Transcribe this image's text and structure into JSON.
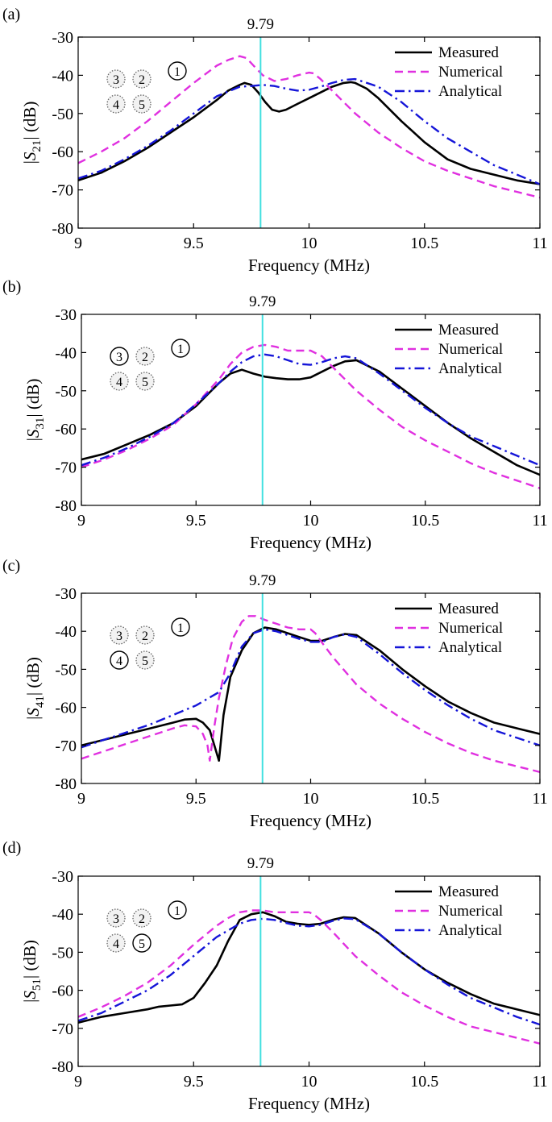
{
  "figure": {
    "x_range": [
      9,
      11
    ],
    "y_range": [
      -80,
      -30
    ],
    "x_ticks": [
      "9",
      "9.5",
      "10",
      "10.5",
      "11"
    ],
    "y_ticks": [
      "-30",
      "-40",
      "-50",
      "-60",
      "-70",
      "-80"
    ],
    "marker_value": 9.79,
    "marker_label": "9.79",
    "colors": {
      "measured": "#000000",
      "numerical": "#e030e0",
      "analytical": "#1515d8",
      "marker": "#40e0e0"
    }
  },
  "chart_data": [
    {
      "type": "line",
      "panel_label": "(a)",
      "ylabel": {
        "prefix": "|",
        "var": "S",
        "sub": "21",
        "suffix": "| (dB)"
      },
      "xlabel": "Frequency (MHz)",
      "xlim": [
        9,
        11
      ],
      "ylim": [
        -80,
        -30
      ],
      "vline": {
        "x": 9.79,
        "label": "9.79"
      },
      "legend": {
        "position": "top-right",
        "entries": [
          "Measured",
          "Numerical",
          "Analytical"
        ]
      },
      "ports": {
        "row1": [
          "3",
          "2"
        ],
        "row2": [
          "4",
          "5"
        ],
        "source": "1",
        "active": [
          "1"
        ]
      },
      "series": [
        {
          "name": "Measured",
          "style": "solid",
          "x": [
            9.0,
            9.1,
            9.2,
            9.3,
            9.4,
            9.5,
            9.6,
            9.65,
            9.7,
            9.72,
            9.75,
            9.78,
            9.81,
            9.84,
            9.87,
            9.9,
            9.95,
            10.0,
            10.05,
            10.1,
            10.15,
            10.18,
            10.2,
            10.25,
            10.3,
            10.4,
            10.5,
            10.6,
            10.7,
            10.8,
            10.9,
            11.0
          ],
          "y": [
            -67.5,
            -65.5,
            -62.5,
            -59,
            -55,
            -51,
            -46.5,
            -44,
            -42.5,
            -42,
            -42.5,
            -44.5,
            -47,
            -49,
            -49.5,
            -49,
            -47.5,
            -46,
            -44.5,
            -43,
            -42,
            -41.8,
            -42,
            -43.5,
            -46,
            -52,
            -57.5,
            -62,
            -64.5,
            -66,
            -67.5,
            -68.5
          ]
        },
        {
          "name": "Numerical",
          "style": "dashed",
          "x": [
            9.0,
            9.1,
            9.2,
            9.3,
            9.4,
            9.5,
            9.6,
            9.65,
            9.7,
            9.73,
            9.76,
            9.8,
            9.85,
            9.9,
            9.95,
            10.0,
            10.02,
            10.05,
            10.1,
            10.2,
            10.3,
            10.4,
            10.5,
            10.6,
            10.7,
            10.8,
            10.9,
            11.0
          ],
          "y": [
            -63,
            -60,
            -56.5,
            -52,
            -47,
            -42,
            -37.5,
            -36,
            -35,
            -35.5,
            -37.5,
            -40,
            -41.5,
            -41,
            -40,
            -39.3,
            -39.5,
            -41,
            -44,
            -50,
            -55,
            -59,
            -62.5,
            -65,
            -67,
            -69,
            -70.5,
            -72
          ]
        },
        {
          "name": "Analytical",
          "style": "dashdot",
          "x": [
            9.0,
            9.1,
            9.2,
            9.3,
            9.4,
            9.5,
            9.6,
            9.7,
            9.75,
            9.8,
            9.85,
            9.9,
            9.95,
            10.0,
            10.05,
            10.1,
            10.15,
            10.2,
            10.3,
            10.4,
            10.5,
            10.6,
            10.7,
            10.8,
            10.9,
            11.0
          ],
          "y": [
            -67,
            -65,
            -62,
            -58.5,
            -54.5,
            -50,
            -45.5,
            -43,
            -42.8,
            -42.5,
            -42.8,
            -43.5,
            -44,
            -43.8,
            -43,
            -42,
            -41.2,
            -41,
            -43,
            -47,
            -52,
            -56.5,
            -60,
            -63.5,
            -66,
            -68.5
          ]
        }
      ]
    },
    {
      "type": "line",
      "panel_label": "(b)",
      "ylabel": {
        "prefix": "|",
        "var": "S",
        "sub": "31",
        "suffix": "| (dB)"
      },
      "xlabel": "Frequency (MHz)",
      "xlim": [
        9,
        11
      ],
      "ylim": [
        -80,
        -30
      ],
      "vline": {
        "x": 9.79,
        "label": "9.79"
      },
      "legend": {
        "position": "top-right",
        "entries": [
          "Measured",
          "Numerical",
          "Analytical"
        ]
      },
      "ports": {
        "row1": [
          "3",
          "2"
        ],
        "row2": [
          "4",
          "5"
        ],
        "source": "1",
        "active": [
          "1",
          "3"
        ]
      },
      "series": [
        {
          "name": "Measured",
          "style": "solid",
          "x": [
            9.0,
            9.1,
            9.2,
            9.3,
            9.4,
            9.5,
            9.55,
            9.6,
            9.65,
            9.7,
            9.75,
            9.8,
            9.85,
            9.9,
            9.95,
            10.0,
            10.05,
            10.1,
            10.15,
            10.2,
            10.3,
            10.4,
            10.5,
            10.6,
            10.7,
            10.8,
            10.9,
            11.0
          ],
          "y": [
            -68,
            -66.5,
            -64,
            -61.5,
            -58.5,
            -54,
            -51,
            -48,
            -45.5,
            -44.5,
            -45.5,
            -46.3,
            -46.7,
            -47,
            -47,
            -46.5,
            -45,
            -43.5,
            -42.3,
            -42,
            -45,
            -49.5,
            -54,
            -58.5,
            -62.5,
            -66,
            -69.5,
            -72
          ]
        },
        {
          "name": "Numerical",
          "style": "dashed",
          "x": [
            9.0,
            9.1,
            9.2,
            9.3,
            9.4,
            9.5,
            9.6,
            9.65,
            9.7,
            9.75,
            9.8,
            9.85,
            9.9,
            9.95,
            10.0,
            10.05,
            10.1,
            10.2,
            10.3,
            10.4,
            10.5,
            10.6,
            10.7,
            10.8,
            10.9,
            11.0
          ],
          "y": [
            -70,
            -68,
            -65.5,
            -62.5,
            -59,
            -53.5,
            -47,
            -43,
            -40,
            -38.5,
            -38,
            -38.5,
            -39.5,
            -39.5,
            -39.5,
            -41,
            -44,
            -50,
            -55,
            -59.5,
            -63,
            -66,
            -69,
            -71.5,
            -73.5,
            -75.5
          ]
        },
        {
          "name": "Analytical",
          "style": "dashdot",
          "x": [
            9.0,
            9.1,
            9.2,
            9.3,
            9.4,
            9.5,
            9.6,
            9.65,
            9.7,
            9.75,
            9.8,
            9.85,
            9.9,
            9.95,
            10.0,
            10.05,
            10.1,
            10.15,
            10.2,
            10.3,
            10.4,
            10.5,
            10.6,
            10.7,
            10.8,
            10.9,
            11.0
          ],
          "y": [
            -69.5,
            -67.5,
            -65,
            -62,
            -58.5,
            -53.5,
            -48,
            -45,
            -42.5,
            -41,
            -40.5,
            -41,
            -42,
            -43,
            -43.2,
            -42.5,
            -41.5,
            -41,
            -41.5,
            -45.5,
            -50,
            -54.5,
            -58.5,
            -62,
            -64.5,
            -67,
            -69.5
          ]
        }
      ]
    },
    {
      "type": "line",
      "panel_label": "(c)",
      "ylabel": {
        "prefix": "|",
        "var": "S",
        "sub": "41",
        "suffix": "| (dB)"
      },
      "xlabel": "Frequency (MHz)",
      "xlim": [
        9,
        11
      ],
      "ylim": [
        -80,
        -30
      ],
      "vline": {
        "x": 9.79,
        "label": "9.79"
      },
      "legend": {
        "position": "top-right",
        "entries": [
          "Measured",
          "Numerical",
          "Analytical"
        ]
      },
      "ports": {
        "row1": [
          "3",
          "2"
        ],
        "row2": [
          "4",
          "5"
        ],
        "source": "1",
        "active": [
          "1",
          "4"
        ]
      },
      "series": [
        {
          "name": "Measured",
          "style": "solid",
          "x": [
            9.0,
            9.1,
            9.2,
            9.3,
            9.4,
            9.45,
            9.5,
            9.53,
            9.56,
            9.58,
            9.6,
            9.62,
            9.65,
            9.7,
            9.75,
            9.8,
            9.85,
            9.9,
            9.95,
            10.0,
            10.05,
            10.1,
            10.15,
            10.2,
            10.3,
            10.4,
            10.5,
            10.6,
            10.7,
            10.8,
            10.9,
            11.0
          ],
          "y": [
            -70,
            -68.5,
            -67,
            -65.5,
            -64,
            -63.2,
            -63,
            -64,
            -66,
            -70,
            -74,
            -62,
            -52,
            -45,
            -40.5,
            -39,
            -39.5,
            -40.5,
            -41.5,
            -42.5,
            -42.5,
            -41.5,
            -40.7,
            -41,
            -45,
            -50,
            -54.5,
            -58.5,
            -61.5,
            -64,
            -65.5,
            -67
          ]
        },
        {
          "name": "Numerical",
          "style": "dashed",
          "x": [
            9.0,
            9.1,
            9.2,
            9.3,
            9.4,
            9.45,
            9.5,
            9.53,
            9.55,
            9.56,
            9.58,
            9.6,
            9.63,
            9.66,
            9.7,
            9.73,
            9.76,
            9.8,
            9.85,
            9.9,
            9.95,
            10.0,
            10.02,
            10.05,
            10.1,
            10.2,
            10.3,
            10.4,
            10.5,
            10.6,
            10.7,
            10.8,
            10.9,
            11.0
          ],
          "y": [
            -73.5,
            -71.5,
            -69.5,
            -67.5,
            -65.5,
            -64.7,
            -65,
            -67,
            -70,
            -74,
            -65,
            -57.5,
            -49,
            -42,
            -37.5,
            -36,
            -36,
            -37,
            -38,
            -39,
            -39.5,
            -39.5,
            -40.5,
            -43,
            -47,
            -54,
            -59,
            -63,
            -66.5,
            -69.5,
            -72,
            -74,
            -75.5,
            -77
          ]
        },
        {
          "name": "Analytical",
          "style": "dashdot",
          "x": [
            9.0,
            9.1,
            9.2,
            9.3,
            9.4,
            9.5,
            9.6,
            9.65,
            9.7,
            9.75,
            9.8,
            9.85,
            9.9,
            9.95,
            10.0,
            10.05,
            10.1,
            10.15,
            10.2,
            10.3,
            10.4,
            10.5,
            10.6,
            10.7,
            10.8,
            10.9,
            11.0
          ],
          "y": [
            -70.5,
            -68.5,
            -66.5,
            -64.5,
            -62,
            -59.5,
            -56,
            -51,
            -44,
            -40.5,
            -39.5,
            -40,
            -41,
            -42,
            -42.8,
            -42.8,
            -41.5,
            -40.8,
            -41.5,
            -46,
            -51,
            -55.5,
            -59.5,
            -63,
            -66,
            -68,
            -70
          ]
        }
      ]
    },
    {
      "type": "line",
      "panel_label": "(d)",
      "ylabel": {
        "prefix": "|",
        "var": "S",
        "sub": "51",
        "suffix": "| (dB)"
      },
      "xlabel": "Frequency (MHz)",
      "xlim": [
        9,
        11
      ],
      "ylim": [
        -80,
        -30
      ],
      "vline": {
        "x": 9.79,
        "label": "9.79"
      },
      "legend": {
        "position": "top-right",
        "entries": [
          "Measured",
          "Numerical",
          "Analytical"
        ]
      },
      "ports": {
        "row1": [
          "3",
          "2"
        ],
        "row2": [
          "4",
          "5"
        ],
        "source": "1",
        "active": [
          "1",
          "5"
        ]
      },
      "series": [
        {
          "name": "Measured",
          "style": "solid",
          "x": [
            9.0,
            9.1,
            9.2,
            9.3,
            9.35,
            9.4,
            9.45,
            9.5,
            9.55,
            9.6,
            9.65,
            9.7,
            9.75,
            9.8,
            9.85,
            9.9,
            9.95,
            10.0,
            10.05,
            10.1,
            10.15,
            10.2,
            10.3,
            10.4,
            10.5,
            10.6,
            10.7,
            10.8,
            10.9,
            11.0
          ],
          "y": [
            -68.5,
            -67,
            -66,
            -65,
            -64.3,
            -64,
            -63.7,
            -62,
            -58,
            -53.5,
            -47,
            -41.5,
            -40,
            -39.5,
            -40.5,
            -42,
            -42.5,
            -42.8,
            -42.5,
            -41.5,
            -40.8,
            -41,
            -45,
            -50,
            -54.5,
            -58,
            -61,
            -63.5,
            -65,
            -66.5
          ]
        },
        {
          "name": "Numerical",
          "style": "dashed",
          "x": [
            9.0,
            9.1,
            9.2,
            9.3,
            9.4,
            9.5,
            9.6,
            9.65,
            9.7,
            9.75,
            9.8,
            9.85,
            9.9,
            9.95,
            10.0,
            10.02,
            10.05,
            10.1,
            10.2,
            10.3,
            10.4,
            10.5,
            10.6,
            10.7,
            10.8,
            10.9,
            11.0
          ],
          "y": [
            -67,
            -64.5,
            -61.5,
            -58,
            -53.5,
            -48,
            -43,
            -41,
            -39.5,
            -39,
            -39,
            -39.5,
            -39.5,
            -39.5,
            -39.5,
            -40,
            -41.5,
            -44.5,
            -51,
            -56,
            -60.5,
            -64,
            -67,
            -69.5,
            -71,
            -72.5,
            -74
          ]
        },
        {
          "name": "Analytical",
          "style": "dashdot",
          "x": [
            9.0,
            9.1,
            9.2,
            9.3,
            9.4,
            9.5,
            9.6,
            9.7,
            9.75,
            9.8,
            9.85,
            9.9,
            9.95,
            10.0,
            10.05,
            10.1,
            10.15,
            10.2,
            10.3,
            10.4,
            10.5,
            10.6,
            10.7,
            10.8,
            10.9,
            11.0
          ],
          "y": [
            -68,
            -66,
            -63,
            -60,
            -56,
            -51,
            -46,
            -42.5,
            -41.5,
            -41.2,
            -41.5,
            -42.3,
            -43,
            -43.2,
            -42.8,
            -41.8,
            -41.1,
            -41.3,
            -45,
            -50,
            -54.5,
            -58.5,
            -62,
            -64.5,
            -67,
            -69
          ]
        }
      ]
    }
  ]
}
